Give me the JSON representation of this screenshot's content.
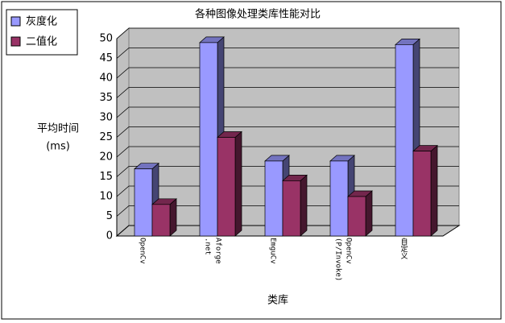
{
  "chart_data": {
    "type": "bar3d",
    "title": "各种图像处理类库性能对比",
    "y_label": [
      "平均时间",
      "(ms)"
    ],
    "x_label": "类库",
    "categories": [
      "OpenCv",
      "Aforge\n.net",
      "EmguCv",
      "OpenCv\n(P/Invoke)",
      "自定义"
    ],
    "series": [
      {
        "name": "灰度化",
        "color": "#9999ff",
        "values": [
          17,
          49,
          19,
          19,
          48.5
        ]
      },
      {
        "name": "二值化",
        "color": "#993366",
        "values": [
          8,
          25,
          14,
          10,
          21.5
        ]
      }
    ],
    "ylim": [
      0,
      50
    ],
    "yticks": [
      0,
      5,
      10,
      15,
      20,
      25,
      30,
      35,
      40,
      45,
      50
    ],
    "grid": true,
    "legend": "top-left"
  }
}
